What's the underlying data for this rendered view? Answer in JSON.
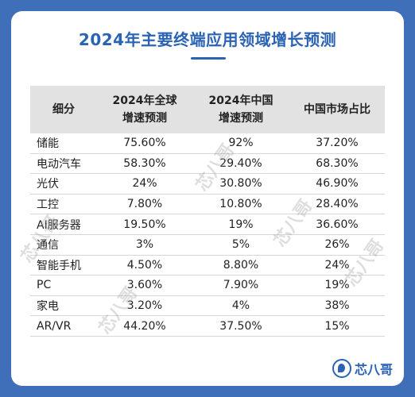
{
  "title": "2024年主要终端应用领域增长预测",
  "table": {
    "headers": [
      "细分",
      "2024年全球\n增速预测",
      "2024年中国\n增速预测",
      "中国市场占比"
    ],
    "rows": [
      [
        "储能",
        "75.60%",
        "92%",
        "37.20%"
      ],
      [
        "电动汽车",
        "58.30%",
        "29.40%",
        "68.30%"
      ],
      [
        "光伏",
        "24%",
        "30.80%",
        "46.90%"
      ],
      [
        "工控",
        "7.80%",
        "10.80%",
        "28.40%"
      ],
      [
        "AI服务器",
        "19.50%",
        "19%",
        "36.60%"
      ],
      [
        "通信",
        "3%",
        "5%",
        "26%"
      ],
      [
        "智能手机",
        "4.50%",
        "8.80%",
        "24%"
      ],
      [
        "PC",
        "3.60%",
        "7.90%",
        "19%"
      ],
      [
        "家电",
        "3.20%",
        "4%",
        "38%"
      ],
      [
        "AR/VR",
        "44.20%",
        "37.50%",
        "15%"
      ]
    ]
  },
  "watermark_text": "芯八哥",
  "logo_text": "芯八哥",
  "colors": {
    "background": "#3f6fb8",
    "title": "#2b63b4",
    "header_bg": "#e2e2e2"
  }
}
